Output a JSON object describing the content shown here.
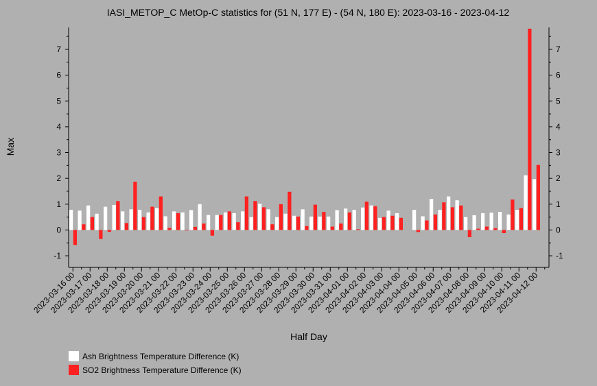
{
  "chart_data": {
    "type": "bar",
    "title": "IASI_METOP_C MetOp-C statistics for (51 N, 177 E) - (54 N, 180 E): 2023-03-16 - 2023-04-12",
    "xlabel": "Half Day",
    "ylabel": "Max",
    "ylim": [
      -1.45,
      7.85
    ],
    "yticks": [
      -1,
      0,
      1,
      2,
      3,
      4,
      5,
      6,
      7
    ],
    "categories": [
      "2023-03-16 00",
      "2023-03-16 12",
      "2023-03-17 00",
      "2023-03-17 12",
      "2023-03-18 00",
      "2023-03-18 12",
      "2023-03-19 00",
      "2023-03-19 12",
      "2023-03-20 00",
      "2023-03-20 12",
      "2023-03-21 00",
      "2023-03-21 12",
      "2023-03-22 00",
      "2023-03-22 12",
      "2023-03-23 00",
      "2023-03-23 12",
      "2023-03-24 00",
      "2023-03-24 12",
      "2023-03-25 00",
      "2023-03-25 12",
      "2023-03-26 00",
      "2023-03-26 12",
      "2023-03-27 00",
      "2023-03-27 12",
      "2023-03-28 00",
      "2023-03-28 12",
      "2023-03-29 00",
      "2023-03-29 12",
      "2023-03-30 00",
      "2023-03-30 12",
      "2023-03-31 00",
      "2023-03-31 12",
      "2023-04-01 00",
      "2023-04-01 12",
      "2023-04-02 00",
      "2023-04-02 12",
      "2023-04-03 00",
      "2023-04-03 12",
      "2023-04-04 00",
      "2023-04-04 12",
      "2023-04-05 00",
      "2023-04-05 12",
      "2023-04-06 00",
      "2023-04-06 12",
      "2023-04-07 00",
      "2023-04-07 12",
      "2023-04-08 00",
      "2023-04-08 12",
      "2023-04-09 00",
      "2023-04-09 12",
      "2023-04-10 00",
      "2023-04-10 12",
      "2023-04-11 00",
      "2023-04-11 12",
      "2023-04-12 00",
      "2023-04-12 12"
    ],
    "tick_labels": [
      "2023-03-16 00",
      "2023-03-17 00",
      "2023-03-18 00",
      "2023-03-19 00",
      "2023-03-20 00",
      "2023-03-21 00",
      "2023-03-22 00",
      "2023-03-23 00",
      "2023-03-24 00",
      "2023-03-25 00",
      "2023-03-26 00",
      "2023-03-27 00",
      "2023-03-28 00",
      "2023-03-29 00",
      "2023-03-30 00",
      "2023-03-31 00",
      "2023-04-01 00",
      "2023-04-02 00",
      "2023-04-03 00",
      "2023-04-04 00",
      "2023-04-05 00",
      "2023-04-06 00",
      "2023-04-07 00",
      "2023-04-08 00",
      "2023-04-09 00",
      "2023-04-10 00",
      "2023-04-11 00",
      "2023-04-12 00"
    ],
    "series": [
      {
        "name": "Ash Brightness Temperature Difference (K)",
        "color": "#ffffff",
        "values": [
          0.78,
          0.75,
          0.95,
          0.63,
          0.9,
          0.97,
          0.72,
          0.8,
          0.78,
          0.68,
          0.85,
          0.53,
          0.72,
          0.68,
          0.77,
          1.0,
          0.58,
          0.58,
          0.68,
          0.65,
          0.72,
          0.5,
          1.02,
          0.8,
          0.5,
          0.63,
          0.55,
          0.8,
          0.52,
          0.52,
          0.52,
          0.77,
          0.83,
          0.78,
          0.87,
          0.95,
          0.47,
          0.75,
          0.65,
          null,
          0.78,
          0.53,
          1.2,
          0.78,
          1.3,
          1.15,
          0.5,
          0.57,
          0.65,
          0.67,
          0.7,
          0.6,
          0.78,
          2.12,
          1.97,
          null
        ]
      },
      {
        "name": "SO2 Brightness Temperature Difference (K)",
        "color": "#ff2020",
        "values": [
          -0.58,
          0.22,
          0.5,
          -0.35,
          -0.07,
          1.12,
          0.27,
          1.87,
          0.5,
          0.9,
          1.3,
          0.08,
          0.65,
          -0.02,
          0.12,
          0.25,
          -0.22,
          0.58,
          0.72,
          0.3,
          1.3,
          1.12,
          0.88,
          0.22,
          1.0,
          1.48,
          0.52,
          0.15,
          0.98,
          0.7,
          0.13,
          0.25,
          0.68,
          0.03,
          1.1,
          0.92,
          0.5,
          0.55,
          0.47,
          null,
          -0.08,
          0.37,
          0.6,
          1.07,
          0.88,
          0.95,
          -0.28,
          0.05,
          0.13,
          0.07,
          -0.12,
          1.18,
          0.85,
          7.8,
          2.52,
          null
        ]
      }
    ],
    "grid": false,
    "legend_position": "bottom-left"
  }
}
